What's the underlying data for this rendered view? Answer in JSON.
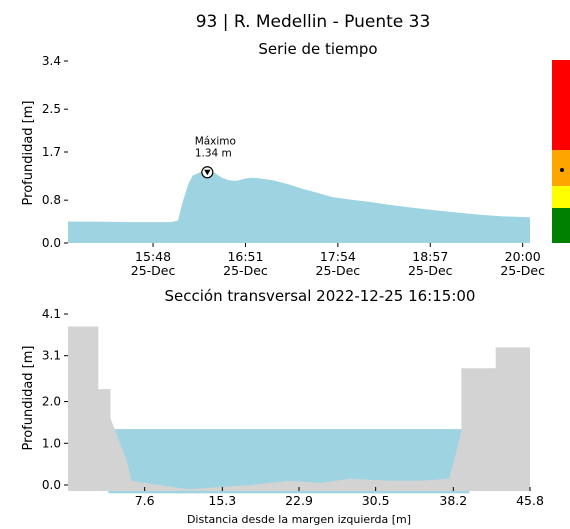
{
  "figure": {
    "title": "93 | R. Medellin - Puente 33",
    "colors": {
      "area_fill": "#9ed3e2",
      "bank_fill": "#d3d3d3",
      "water_fill": "#9ed3e2",
      "level_red": "#ff0000",
      "level_orange": "#ffa500",
      "level_yellow": "#ffff00",
      "level_green": "#008000"
    }
  },
  "chart_data": [
    {
      "type": "area",
      "title": "Serie de tiempo",
      "ylabel": "Profundidad [m]",
      "xlabel": "",
      "ylim": [
        0,
        3.4
      ],
      "yticks": [
        "0.0",
        "0.8",
        "1.7",
        "2.5",
        "3.4"
      ],
      "ytick_values": [
        0.0,
        0.8,
        1.7,
        2.5,
        3.4
      ],
      "xlim": [
        "14:50",
        "20:05"
      ],
      "xticks": [
        {
          "time": "15:48",
          "line1": "15:48",
          "line2": "25-Dec"
        },
        {
          "time": "16:51",
          "line1": "16:51",
          "line2": "25-Dec"
        },
        {
          "time": "17:54",
          "line1": "17:54",
          "line2": "25-Dec"
        },
        {
          "time": "18:57",
          "line1": "18:57",
          "line2": "25-Dec"
        },
        {
          "time": "20:00",
          "line1": "20:00",
          "line2": "25-Dec"
        }
      ],
      "series": [
        {
          "x": [
            "14:50",
            "15:10",
            "15:30",
            "15:50",
            "16:00",
            "16:05",
            "16:08",
            "16:12",
            "16:15",
            "16:20",
            "16:25",
            "16:30",
            "16:35",
            "16:40",
            "16:45",
            "16:50",
            "16:55",
            "17:00",
            "17:10",
            "17:20",
            "17:30",
            "17:40",
            "17:50",
            "18:00",
            "18:15",
            "18:30",
            "18:45",
            "19:00",
            "19:15",
            "19:30",
            "19:45",
            "20:05"
          ],
          "y": [
            0.4,
            0.4,
            0.39,
            0.39,
            0.39,
            0.42,
            0.75,
            1.1,
            1.26,
            1.32,
            1.34,
            1.31,
            1.22,
            1.17,
            1.16,
            1.2,
            1.22,
            1.21,
            1.17,
            1.1,
            1.01,
            0.94,
            0.86,
            0.82,
            0.77,
            0.71,
            0.66,
            0.61,
            0.57,
            0.53,
            0.5,
            0.48
          ]
        }
      ],
      "annotation": {
        "label": "Máximo",
        "value_text": "1.34 m",
        "x": "16:25",
        "y": 1.34
      },
      "level_bar": {
        "marker_level": "orange"
      }
    },
    {
      "type": "area",
      "title": "Sección transversal 2022-12-25 16:15:00",
      "xlabel": "Distancia desde la margen izquierda [m]",
      "ylabel": "Profundidad [m]",
      "xlim": [
        0,
        45.8
      ],
      "ylim": [
        0,
        4.1
      ],
      "xticks": [
        "7.6",
        "15.3",
        "22.9",
        "30.5",
        "38.2",
        "45.8"
      ],
      "xtick_values": [
        7.6,
        15.3,
        22.9,
        30.5,
        38.2,
        45.8
      ],
      "yticks": [
        "0.0",
        "1.0",
        "2.0",
        "3.1",
        "4.1"
      ],
      "ytick_values": [
        0.0,
        1.0,
        2.0,
        3.1,
        4.1
      ],
      "water_level": 1.34,
      "bank_profile": [
        [
          0,
          3.8
        ],
        [
          3.0,
          3.8
        ],
        [
          3.0,
          2.3
        ],
        [
          4.2,
          2.3
        ],
        [
          4.2,
          1.6
        ],
        [
          5.8,
          0.6
        ],
        [
          6.3,
          0.1
        ],
        [
          9,
          0.0
        ],
        [
          12,
          -0.1
        ],
        [
          15,
          -0.05
        ],
        [
          18,
          0.0
        ],
        [
          22,
          0.1
        ],
        [
          25,
          0.05
        ],
        [
          28,
          0.15
        ],
        [
          32,
          0.1
        ],
        [
          35,
          0.1
        ],
        [
          37.8,
          0.15
        ],
        [
          38.5,
          0.8
        ],
        [
          39.0,
          1.3
        ],
        [
          39.0,
          2.8
        ],
        [
          42.4,
          2.8
        ],
        [
          42.4,
          3.3
        ],
        [
          45.8,
          3.3
        ]
      ]
    }
  ]
}
